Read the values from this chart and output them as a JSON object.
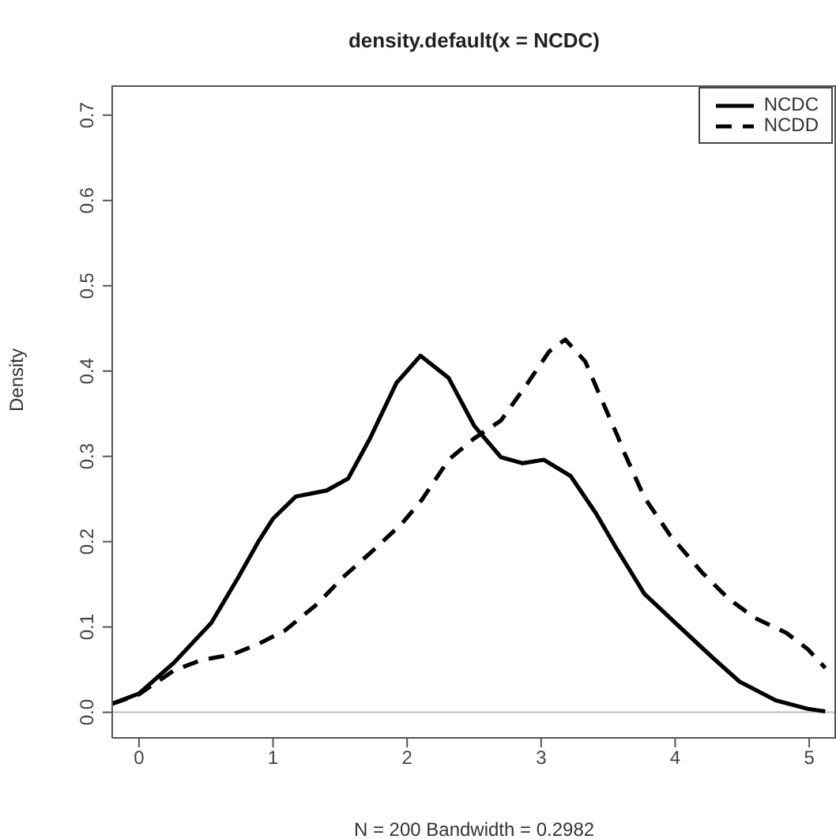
{
  "chart_data": {
    "type": "line",
    "title": "density.default(x = NCDC)",
    "xlabel": "N = 200   Bandwidth = 0.2982",
    "ylabel": "Density",
    "xlim": [
      -0.2,
      5.2
    ],
    "xticks": [
      0,
      1,
      2,
      3,
      4,
      5
    ],
    "ylim": [
      -0.03,
      0.735
    ],
    "yticks": [
      {
        "value": 0,
        "label": "0.0"
      },
      0.1,
      0.2,
      0.3,
      0.4,
      0.5,
      0.6,
      0.7
    ],
    "grid": false,
    "legend": "top right",
    "marker": "none",
    "ref_lines": [
      {
        "axis": "y",
        "value": 0,
        "color": "#bebebe",
        "line_style": "solid"
      }
    ],
    "series": [
      {
        "name": "NCDC",
        "color": "#000000",
        "line_style": "solid",
        "x": [
          -0.2,
          0,
          0.26,
          0.54,
          0.74,
          0.89,
          1,
          1.17,
          1.4,
          1.56,
          1.72,
          1.92,
          2.1,
          2.31,
          2.5,
          2.7,
          2.86,
          3.02,
          3.22,
          3.41,
          3.57,
          3.77,
          4.0,
          4.28,
          4.48,
          4.75,
          4.99,
          5.12
        ],
        "values": [
          0.01,
          0.022,
          0.058,
          0.105,
          0.158,
          0.2,
          0.227,
          0.253,
          0.26,
          0.274,
          0.32,
          0.386,
          0.418,
          0.392,
          0.336,
          0.299,
          0.292,
          0.296,
          0.277,
          0.233,
          0.19,
          0.139,
          0.105,
          0.064,
          0.036,
          0.014,
          0.004,
          0.001
        ]
      },
      {
        "name": "NCDD",
        "color": "#000000",
        "line_style": "dashed",
        "x": [
          -0.2,
          0,
          0.26,
          0.46,
          0.7,
          0.89,
          1.09,
          1.33,
          1.52,
          1.72,
          1.96,
          2.11,
          2.31,
          2.5,
          2.7,
          2.9,
          3.06,
          3.18,
          3.33,
          3.45,
          3.57,
          3.61,
          3.77,
          3.96,
          4.2,
          4.4,
          4.59,
          4.83,
          4.99,
          5.12
        ],
        "values": [
          0.01,
          0.021,
          0.049,
          0.061,
          0.068,
          0.08,
          0.096,
          0.127,
          0.158,
          0.186,
          0.221,
          0.249,
          0.296,
          0.321,
          0.342,
          0.386,
          0.423,
          0.437,
          0.411,
          0.367,
          0.324,
          0.308,
          0.252,
          0.208,
          0.164,
          0.133,
          0.111,
          0.093,
          0.074,
          0.052
        ]
      }
    ]
  }
}
